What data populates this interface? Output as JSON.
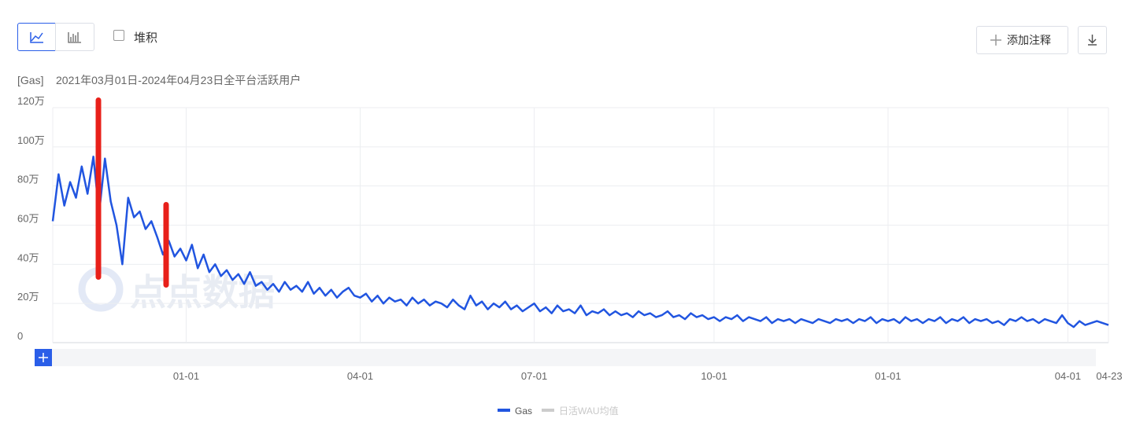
{
  "ui": {
    "stack_label": "堆积",
    "add_note": "添加注释"
  },
  "chart_data": {
    "type": "line",
    "unit_tag": "[Gas]",
    "title": "2021年03月01日-2024年04月23日全平台活跃用户",
    "watermark": "点点数据",
    "grid": true,
    "legend": "bottom",
    "ylim": [
      0,
      1200000
    ],
    "yticks": [
      0,
      {
        "value": 200000,
        "label": "20万"
      },
      {
        "value": 400000,
        "label": "40万"
      },
      {
        "value": 600000,
        "label": "60万"
      },
      {
        "value": 800000,
        "label": "80万"
      },
      {
        "value": 1000000,
        "label": "100万"
      },
      {
        "value": 1200000,
        "label": "120万"
      }
    ],
    "categories": [
      null,
      null,
      null,
      null,
      null,
      null,
      null,
      null,
      null,
      null,
      null,
      null,
      null,
      null,
      null,
      null,
      null,
      null,
      null,
      null,
      null,
      null,
      null,
      "01-01",
      null,
      null,
      null,
      null,
      null,
      null,
      null,
      null,
      null,
      null,
      null,
      null,
      null,
      null,
      null,
      null,
      null,
      null,
      null,
      null,
      null,
      null,
      null,
      null,
      null,
      null,
      null,
      null,
      null,
      "04-01",
      null,
      null,
      null,
      null,
      null,
      null,
      null,
      null,
      null,
      null,
      null,
      null,
      null,
      null,
      null,
      null,
      null,
      null,
      null,
      null,
      null,
      null,
      null,
      null,
      null,
      null,
      null,
      null,
      null,
      "07-01",
      null,
      null,
      null,
      null,
      null,
      null,
      null,
      null,
      null,
      null,
      null,
      null,
      null,
      null,
      null,
      null,
      null,
      null,
      null,
      null,
      null,
      null,
      null,
      null,
      null,
      null,
      null,
      null,
      null,
      null,
      "10-01",
      null,
      null,
      null,
      null,
      null,
      null,
      null,
      null,
      null,
      null,
      null,
      null,
      null,
      null,
      null,
      null,
      null,
      null,
      null,
      null,
      null,
      null,
      null,
      null,
      null,
      null,
      null,
      null,
      null,
      "01-01",
      null,
      null,
      null,
      null,
      null,
      null,
      null,
      null,
      null,
      null,
      null,
      null,
      null,
      null,
      null,
      null,
      null,
      null,
      null,
      null,
      null,
      null,
      null,
      null,
      null,
      null,
      null,
      null,
      null,
      null,
      "04-01",
      null,
      null,
      null,
      null,
      null,
      null,
      "04-23"
    ],
    "series": [
      {
        "name": "Gas",
        "color": "#2155e0",
        "values": [
          620000,
          860000,
          700000,
          820000,
          740000,
          900000,
          760000,
          950000,
          660000,
          940000,
          720000,
          600000,
          400000,
          740000,
          640000,
          670000,
          580000,
          620000,
          540000,
          450000,
          520000,
          440000,
          480000,
          420000,
          500000,
          380000,
          450000,
          360000,
          400000,
          340000,
          370000,
          320000,
          350000,
          300000,
          360000,
          290000,
          310000,
          270000,
          300000,
          260000,
          310000,
          270000,
          290000,
          260000,
          310000,
          250000,
          280000,
          240000,
          270000,
          230000,
          260000,
          280000,
          240000,
          230000,
          250000,
          210000,
          240000,
          200000,
          230000,
          210000,
          220000,
          190000,
          230000,
          200000,
          220000,
          190000,
          210000,
          200000,
          180000,
          220000,
          190000,
          170000,
          240000,
          190000,
          210000,
          170000,
          200000,
          180000,
          210000,
          170000,
          190000,
          160000,
          180000,
          200000,
          160000,
          180000,
          150000,
          190000,
          160000,
          170000,
          150000,
          190000,
          140000,
          160000,
          150000,
          170000,
          140000,
          160000,
          140000,
          150000,
          130000,
          160000,
          140000,
          150000,
          130000,
          140000,
          160000,
          130000,
          140000,
          120000,
          150000,
          130000,
          140000,
          120000,
          130000,
          110000,
          130000,
          120000,
          140000,
          110000,
          130000,
          120000,
          110000,
          130000,
          100000,
          120000,
          110000,
          120000,
          100000,
          120000,
          110000,
          100000,
          120000,
          110000,
          100000,
          120000,
          110000,
          120000,
          100000,
          120000,
          110000,
          130000,
          100000,
          120000,
          110000,
          120000,
          100000,
          130000,
          110000,
          120000,
          100000,
          120000,
          110000,
          130000,
          100000,
          120000,
          110000,
          130000,
          100000,
          120000,
          110000,
          120000,
          100000,
          110000,
          90000,
          120000,
          110000,
          130000,
          110000,
          120000,
          100000,
          120000,
          110000,
          100000,
          140000,
          100000,
          80000,
          110000,
          90000,
          100000,
          110000,
          100000,
          90000
        ]
      },
      {
        "name": "日活WAU均值",
        "color": "#cccccc",
        "visible": false
      }
    ]
  }
}
